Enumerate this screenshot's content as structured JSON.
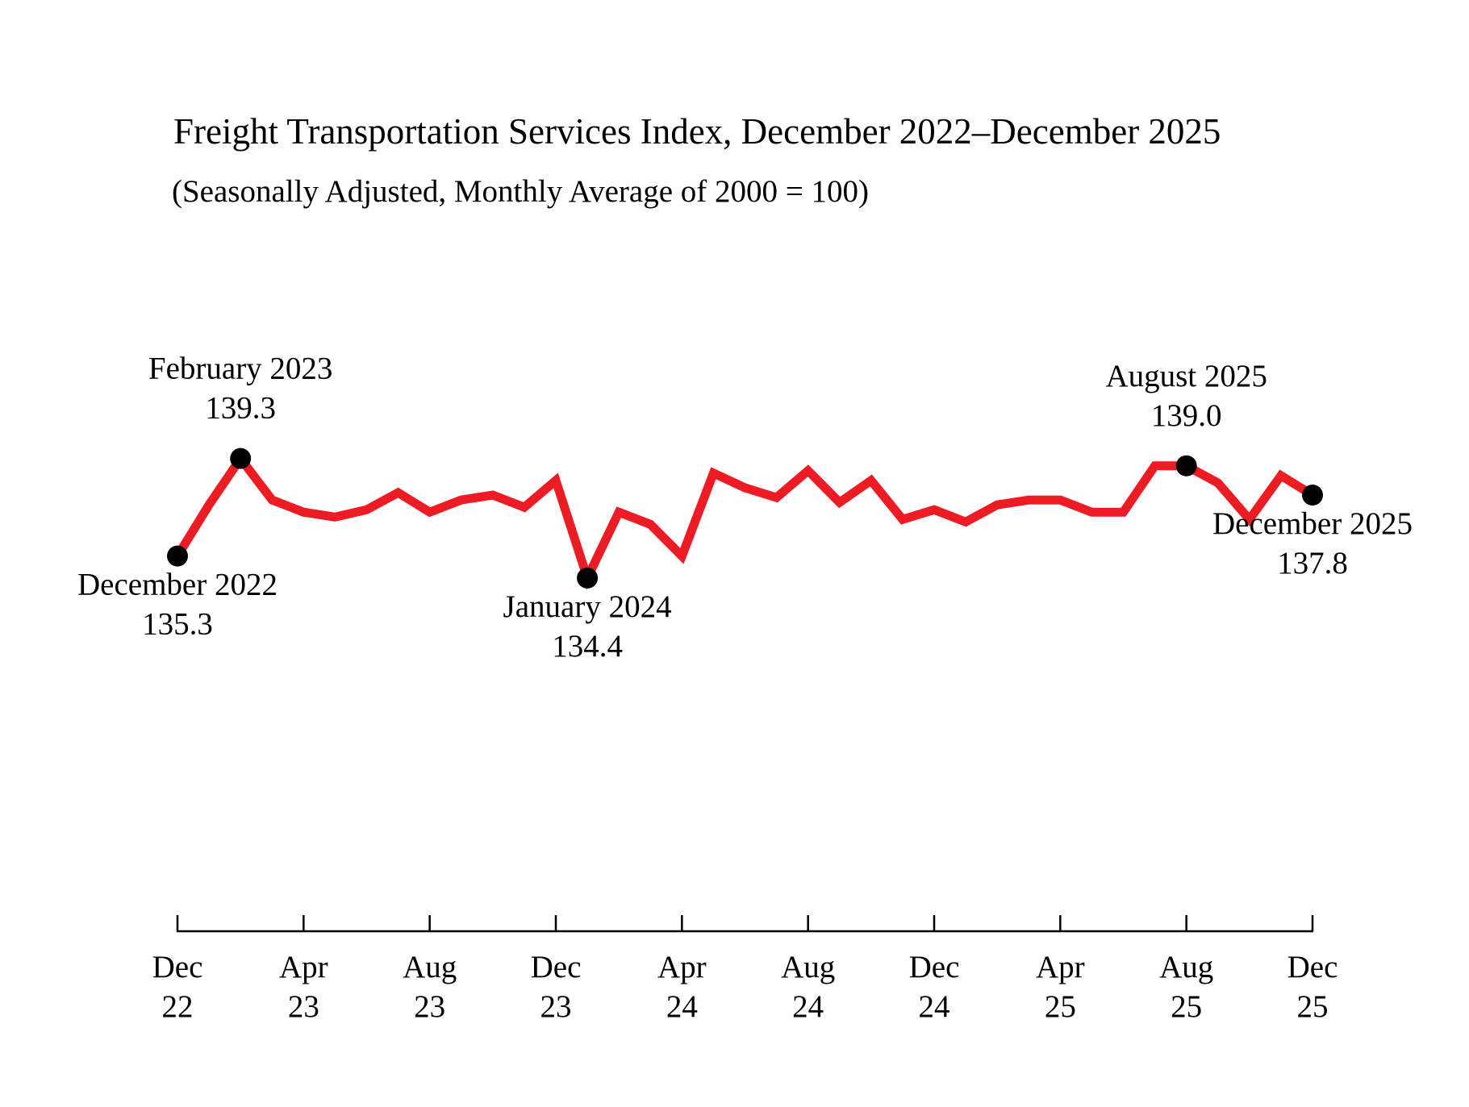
{
  "chart_data": {
    "type": "line",
    "title": "Freight Transportation Services Index, December 2022–December 2025",
    "subtitle": "(Seasonally Adjusted, Monthly Average of 2000 = 100)",
    "categories": [
      "Dec 22",
      null,
      null,
      null,
      "Apr 23",
      null,
      null,
      null,
      "Aug 23",
      null,
      null,
      null,
      "Dec 23",
      null,
      null,
      null,
      "Apr 24",
      null,
      null,
      null,
      "Aug 24",
      null,
      null,
      null,
      "Dec 24",
      null,
      null,
      null,
      "Apr 25",
      null,
      null,
      null,
      "Aug 25",
      null,
      null,
      null,
      "Dec 25"
    ],
    "series": [
      {
        "color": "#ed1c24",
        "values": [
          135.3,
          137.4,
          139.3,
          137.6,
          137.1,
          136.9,
          137.2,
          137.9,
          137.1,
          137.6,
          137.8,
          137.3,
          138.4,
          134.4,
          137.1,
          136.6,
          135.3,
          138.7,
          138.1,
          137.7,
          138.8,
          137.5,
          138.4,
          136.8,
          137.2,
          136.7,
          137.4,
          137.6,
          137.6,
          137.1,
          137.1,
          139.0,
          139.0,
          138.3,
          136.8,
          138.6,
          137.8
        ],
        "value_labels": [
          "135.3",
          null,
          "139.3",
          null,
          null,
          null,
          null,
          null,
          null,
          null,
          null,
          null,
          null,
          "134.4",
          null,
          null,
          null,
          null,
          null,
          null,
          null,
          null,
          null,
          null,
          null,
          null,
          null,
          null,
          null,
          null,
          null,
          null,
          "139.0",
          null,
          null,
          null,
          "137.8"
        ],
        "point_labels": [
          "December 2022",
          null,
          "February 2023",
          null,
          null,
          null,
          null,
          null,
          null,
          null,
          null,
          null,
          null,
          "January 2024",
          null,
          null,
          null,
          null,
          null,
          null,
          null,
          null,
          null,
          null,
          null,
          null,
          null,
          null,
          null,
          null,
          null,
          null,
          "August 2025",
          null,
          null,
          null,
          "December 2025"
        ]
      }
    ],
    "ylim": [
      126,
      142
    ],
    "marker_color": "#000000"
  }
}
